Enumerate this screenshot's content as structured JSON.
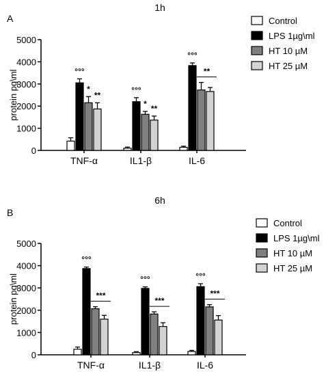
{
  "chart_data": [
    {
      "type": "bar",
      "panel_label": "A",
      "title": "1h",
      "ylabel": "protein pg\\ml",
      "ylim": [
        0,
        5000
      ],
      "yticks": [
        0,
        1000,
        2000,
        3000,
        4000,
        5000
      ],
      "categories": [
        "TNF-α",
        "IL1-β",
        "IL-6"
      ],
      "legend_position": "top-right",
      "series": [
        {
          "name": "Control",
          "color": "#ffffff",
          "values": [
            420,
            100,
            140
          ],
          "errors": [
            150,
            50,
            50
          ]
        },
        {
          "name": "LPS 1µg\\ml",
          "color": "#000000",
          "values": [
            3050,
            2200,
            3830
          ],
          "errors": [
            180,
            180,
            120
          ]
        },
        {
          "name": "HT 10 µM",
          "color": "#808080",
          "values": [
            2150,
            1630,
            2730
          ],
          "errors": [
            280,
            130,
            340
          ]
        },
        {
          "name": "HT 25 µM",
          "color": "#d3d3d3",
          "values": [
            1870,
            1370,
            2660
          ],
          "errors": [
            280,
            180,
            180
          ]
        }
      ],
      "annotations": [
        {
          "category": 0,
          "series": 1,
          "text": "°°°"
        },
        {
          "category": 0,
          "series": 2,
          "text": "*"
        },
        {
          "category": 0,
          "series": 3,
          "text": "**"
        },
        {
          "category": 1,
          "series": 1,
          "text": "°°°"
        },
        {
          "category": 1,
          "series": 2,
          "text": "*"
        },
        {
          "category": 1,
          "series": 3,
          "text": "**"
        },
        {
          "category": 2,
          "series": 1,
          "text": "°°°"
        },
        {
          "category": 2,
          "series": [
            2,
            3
          ],
          "text": "**",
          "bracket": true
        }
      ]
    },
    {
      "type": "bar",
      "panel_label": "B",
      "title": "6h",
      "ylabel": "protein pg\\ml",
      "ylim": [
        0,
        5000
      ],
      "yticks": [
        0,
        1000,
        2000,
        3000,
        4000,
        5000
      ],
      "categories": [
        "TNF-α",
        "IL1-β",
        "IL-6"
      ],
      "legend_position": "top-right",
      "series": [
        {
          "name": "Control",
          "color": "#ffffff",
          "values": [
            250,
            100,
            150
          ],
          "errors": [
            100,
            40,
            50
          ]
        },
        {
          "name": "LPS 1µg\\ml",
          "color": "#000000",
          "values": [
            3870,
            2980,
            3060
          ],
          "errors": [
            70,
            70,
            130
          ]
        },
        {
          "name": "HT 10 µM",
          "color": "#808080",
          "values": [
            2070,
            1830,
            2150
          ],
          "errors": [
            90,
            100,
            100
          ]
        },
        {
          "name": "HT 25 µM",
          "color": "#d3d3d3",
          "values": [
            1600,
            1270,
            1560
          ],
          "errors": [
            170,
            170,
            200
          ]
        }
      ],
      "annotations": [
        {
          "category": 0,
          "series": 1,
          "text": "°°°"
        },
        {
          "category": 0,
          "series": [
            2,
            3
          ],
          "text": "***",
          "bracket": true
        },
        {
          "category": 1,
          "series": 1,
          "text": "°°°"
        },
        {
          "category": 1,
          "series": [
            2,
            3
          ],
          "text": "***",
          "bracket": true
        },
        {
          "category": 2,
          "series": 1,
          "text": "°°°"
        },
        {
          "category": 2,
          "series": [
            2,
            3
          ],
          "text": "***",
          "bracket": true
        }
      ]
    }
  ]
}
